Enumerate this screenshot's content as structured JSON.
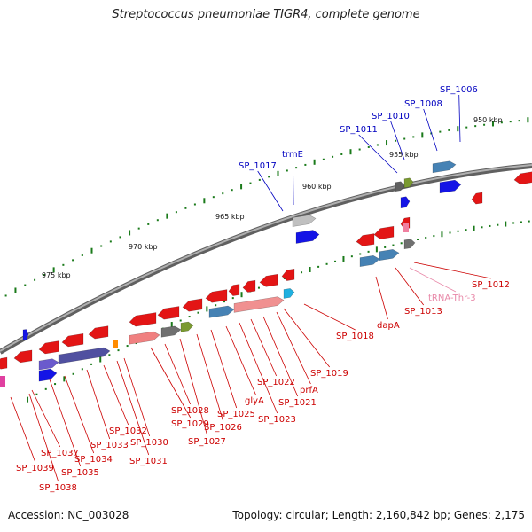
{
  "title": "Streptococcus pneumoniae TIGR4, complete genome",
  "accession": "Accession: NC_003028",
  "summary": "Topology: circular; Length: 2,160,842 bp; Genes: 2,175",
  "colors": {
    "forward_gene": "#1010e0",
    "reverse_gene": "#e01010",
    "trna": "#f080a0",
    "label_forward": "#0000c0",
    "label_reverse": "#cc0000",
    "label_trna": "#e888a8",
    "tick": "#1a7a1a",
    "backbone": "#808080"
  },
  "kbp_markers": [
    {
      "text": "950 kbp"
    },
    {
      "text": "955 kbp"
    },
    {
      "text": "960 kbp"
    },
    {
      "text": "965 kbp"
    },
    {
      "text": "970 kbp"
    },
    {
      "text": "975 kbp"
    }
  ],
  "labels": [
    {
      "text": "SP_1006",
      "strand": "forward"
    },
    {
      "text": "SP_1008",
      "strand": "forward"
    },
    {
      "text": "SP_1010",
      "strand": "forward"
    },
    {
      "text": "SP_1011",
      "strand": "forward"
    },
    {
      "text": "trmE",
      "strand": "forward"
    },
    {
      "text": "SP_1017",
      "strand": "forward"
    },
    {
      "text": "SP_1012",
      "strand": "reverse"
    },
    {
      "text": "tRNA-Thr-3",
      "strand": "trna"
    },
    {
      "text": "SP_1013",
      "strand": "reverse"
    },
    {
      "text": "dapA",
      "strand": "reverse"
    },
    {
      "text": "SP_1018",
      "strand": "reverse"
    },
    {
      "text": "SP_1019",
      "strand": "reverse"
    },
    {
      "text": "prfA",
      "strand": "reverse"
    },
    {
      "text": "SP_1021",
      "strand": "reverse"
    },
    {
      "text": "SP_1022",
      "strand": "reverse"
    },
    {
      "text": "SP_1023",
      "strand": "reverse"
    },
    {
      "text": "glyA",
      "strand": "reverse"
    },
    {
      "text": "SP_1025",
      "strand": "reverse"
    },
    {
      "text": "SP_1026",
      "strand": "reverse"
    },
    {
      "text": "SP_1027",
      "strand": "reverse"
    },
    {
      "text": "SP_1028",
      "strand": "reverse"
    },
    {
      "text": "SP_1029",
      "strand": "reverse"
    },
    {
      "text": "SP_1030",
      "strand": "reverse"
    },
    {
      "text": "SP_1031",
      "strand": "reverse"
    },
    {
      "text": "SP_1032",
      "strand": "reverse"
    },
    {
      "text": "SP_1033",
      "strand": "reverse"
    },
    {
      "text": "SP_1034",
      "strand": "reverse"
    },
    {
      "text": "SP_1035",
      "strand": "reverse"
    },
    {
      "text": "SP_1037",
      "strand": "reverse"
    },
    {
      "text": "SP_1038",
      "strand": "reverse"
    },
    {
      "text": "SP_1039",
      "strand": "reverse"
    }
  ]
}
